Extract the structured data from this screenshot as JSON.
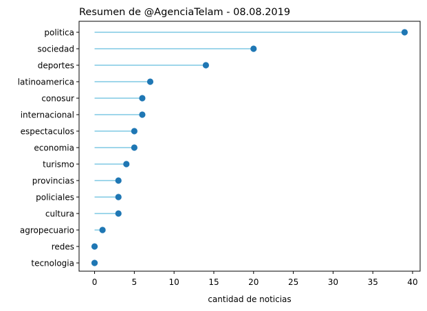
{
  "chart_data": {
    "type": "lollipop",
    "orientation": "horizontal",
    "title": "Resumen de @AgenciaTelam - 08.08.2019",
    "xlabel": "cantidad de noticias",
    "ylabel": "",
    "xlim": [
      -1.95,
      40.95
    ],
    "xticks": [
      0,
      5,
      10,
      15,
      20,
      25,
      30,
      35,
      40
    ],
    "grid": false,
    "stem_color": "#7ec8e3",
    "marker_color": "#1f77b4",
    "categories": [
      "politica",
      "sociedad",
      "deportes",
      "latinoamerica",
      "conosur",
      "internacional",
      "espectaculos",
      "economia",
      "turismo",
      "provincias",
      "policiales",
      "cultura",
      "agropecuario",
      "redes",
      "tecnologia"
    ],
    "values": [
      39,
      20,
      14,
      7,
      6,
      6,
      5,
      5,
      4,
      3,
      3,
      3,
      1,
      0,
      0
    ]
  }
}
